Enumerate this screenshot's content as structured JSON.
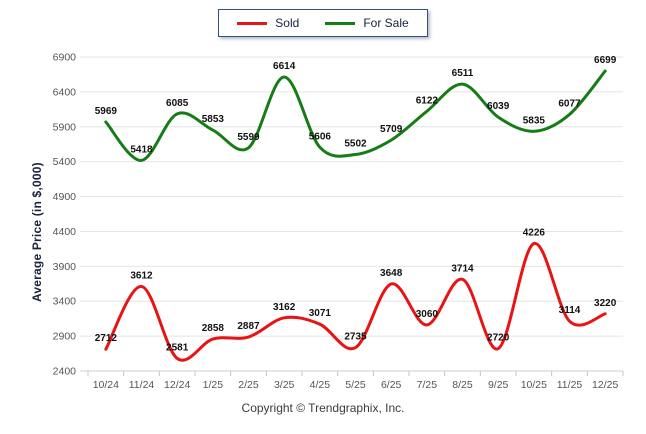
{
  "legend": {
    "items": [
      {
        "label": "Sold",
        "color": "#e81414"
      },
      {
        "label": "For Sale",
        "color": "#157d15"
      }
    ]
  },
  "y_axis_title": "Average Price (in $,000)",
  "footer_text": "Copyright © Trendgraphix, Inc.",
  "colors": {
    "sold_line": "#e81414",
    "for_sale_line": "#157d15",
    "gridline": "#e4e4e4",
    "axis_line": "#cfcfcf",
    "tick_mark": "#bdc7d2",
    "tick_text": "#555555",
    "data_label": "#111111",
    "legend_border": "#33517e"
  },
  "chart_data": {
    "type": "line",
    "categories": [
      "10/24",
      "11/24",
      "12/24",
      "1/25",
      "2/25",
      "3/25",
      "4/25",
      "5/25",
      "6/25",
      "7/25",
      "8/25",
      "9/25",
      "10/25",
      "11/25",
      "12/25"
    ],
    "series": [
      {
        "name": "Sold",
        "color": "#e81414",
        "values": [
          2712,
          3612,
          2581,
          2858,
          2887,
          3162,
          3071,
          2735,
          3648,
          3060,
          3714,
          2720,
          4226,
          3114,
          3220
        ]
      },
      {
        "name": "For Sale",
        "color": "#157d15",
        "values": [
          5969,
          5418,
          6085,
          5853,
          5599,
          6614,
          5606,
          5502,
          5709,
          6122,
          6511,
          6039,
          5835,
          6077,
          6699
        ]
      }
    ],
    "xlabel": "",
    "ylabel": "Average Price (in $,000)",
    "ylim": [
      2400,
      6900
    ],
    "yticks": [
      2400,
      2900,
      3400,
      3900,
      4400,
      4900,
      5400,
      5900,
      6400,
      6900
    ],
    "grid": true,
    "smooth": true,
    "data_labels": true,
    "legend_position": "top-center"
  }
}
